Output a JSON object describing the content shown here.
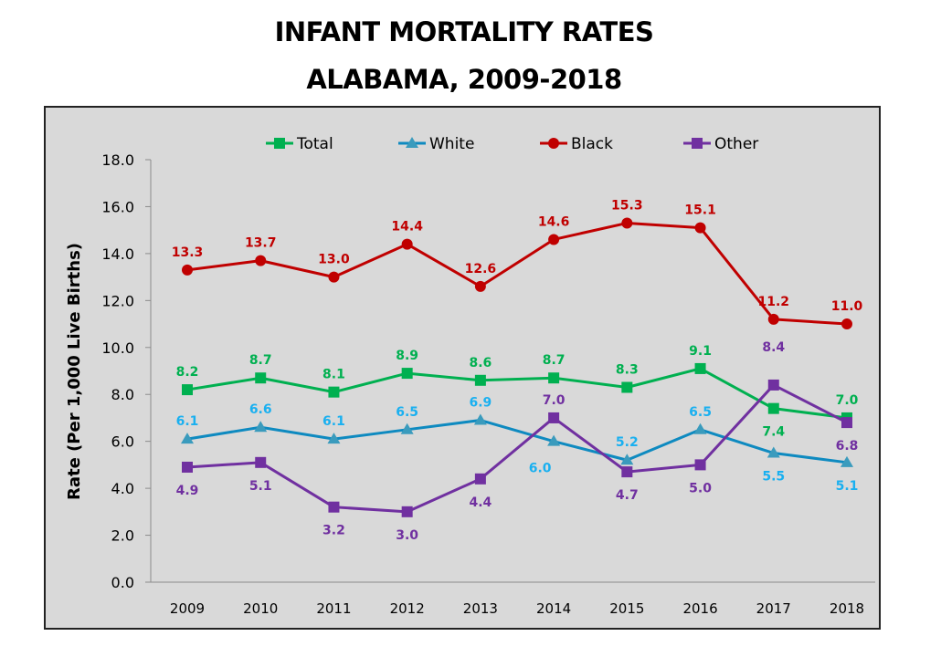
{
  "chart_data": {
    "type": "line",
    "title": "INFANT MORTALITY RATES",
    "subtitle": "ALABAMA, 2009-2018",
    "xlabel": "",
    "ylabel": "Rate (Per 1,000 Live Births)",
    "categories": [
      "2009",
      "2010",
      "2011",
      "2012",
      "2013",
      "2014",
      "2015",
      "2016",
      "2017",
      "2018"
    ],
    "ylim": [
      0,
      18
    ],
    "yticks": [
      "0.0",
      "2.0",
      "4.0",
      "6.0",
      "8.0",
      "10.0",
      "12.0",
      "14.0",
      "16.0",
      "18.0"
    ],
    "grid": false,
    "legend": "top",
    "series": [
      {
        "name": "Total",
        "color": "#00b050",
        "marker": "square",
        "values": [
          8.2,
          8.7,
          8.1,
          8.9,
          8.6,
          8.7,
          8.3,
          9.1,
          7.4,
          7.0
        ],
        "labels": [
          "8.2",
          "8.7",
          "8.1",
          "8.9",
          "8.6",
          "8.7",
          "8.3",
          "9.1",
          "7.4",
          "7.0"
        ],
        "label_pos": [
          "above",
          "above",
          "above",
          "above",
          "above",
          "above",
          "above",
          "above",
          "below",
          "above"
        ]
      },
      {
        "name": "White",
        "color": "#0e8ac0",
        "label_color": "#1ab0f0",
        "marker": "triangle",
        "values": [
          6.1,
          6.6,
          6.1,
          6.5,
          6.9,
          6.0,
          5.2,
          6.5,
          5.5,
          5.1
        ],
        "labels": [
          "6.1",
          "6.6",
          "6.1",
          "6.5",
          "6.9",
          "6.0",
          "5.2",
          "6.5",
          "5.5",
          "5.1"
        ],
        "label_pos": [
          "above",
          "above",
          "above",
          "above",
          "above",
          "below-left",
          "above",
          "above",
          "below",
          "below"
        ]
      },
      {
        "name": "Black",
        "color": "#c00000",
        "marker": "circle",
        "values": [
          13.3,
          13.7,
          13.0,
          14.4,
          12.6,
          14.6,
          15.3,
          15.1,
          11.2,
          11.0
        ],
        "labels": [
          "13.3",
          "13.7",
          "13.0",
          "14.4",
          "12.6",
          "14.6",
          "15.3",
          "15.1",
          "11.2",
          "11.0"
        ],
        "label_pos": [
          "above",
          "above",
          "above",
          "above",
          "above",
          "above",
          "above",
          "above",
          "above",
          "above"
        ]
      },
      {
        "name": "Other",
        "color": "#7030a0",
        "marker": "square",
        "values": [
          4.9,
          5.1,
          3.2,
          3.0,
          4.4,
          7.0,
          4.7,
          5.0,
          8.4,
          6.8
        ],
        "labels": [
          "4.9",
          "5.1",
          "3.2",
          "3.0",
          "4.4",
          "7.0",
          "4.7",
          "5.0",
          "8.4",
          "6.8"
        ],
        "label_pos": [
          "below",
          "below",
          "below",
          "below",
          "below",
          "above",
          "below",
          "below",
          "above-far",
          "below"
        ]
      }
    ]
  }
}
